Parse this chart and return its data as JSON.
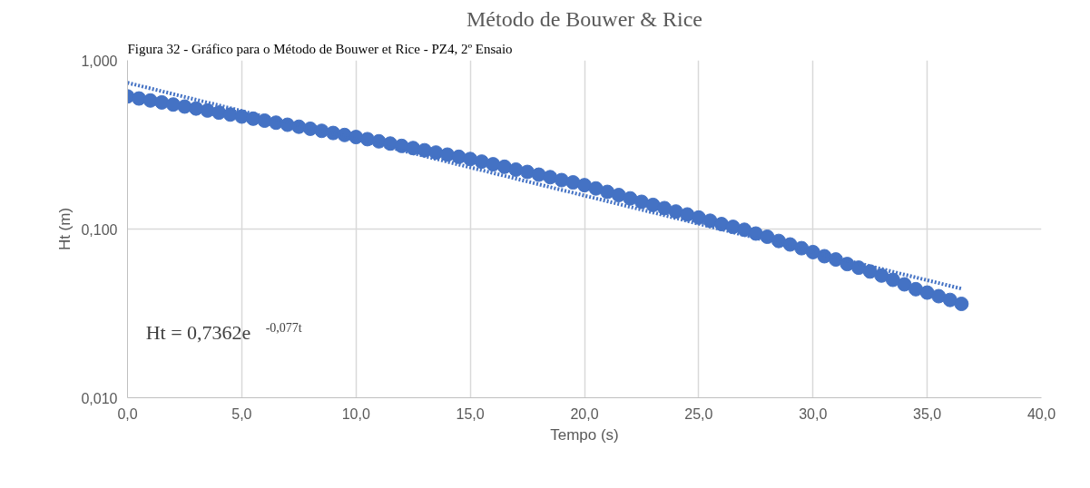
{
  "chart_data": {
    "type": "scatter",
    "title": "Método de Bouwer & Rice",
    "xlabel": "Tempo (s)",
    "ylabel": "Ht (m)",
    "annotations": [
      "Figura 32 - Gráfico para o Método de Bouwer et Rice - PZ4, 2º Ensaio",
      "Ht = 0,7362e$^{-0,077t}$"
    ],
    "x": [
      0,
      0.5,
      1,
      1.5,
      2,
      2.5,
      3,
      3.5,
      4,
      4.5,
      5,
      5.5,
      6,
      6.5,
      7,
      7.5,
      8,
      8.5,
      9,
      9.5,
      10,
      10.5,
      11,
      11.5,
      12,
      12.5,
      13,
      13.5,
      14,
      14.5,
      15,
      15.5,
      16,
      16.5,
      17,
      17.5,
      18,
      18.5,
      19,
      19.5,
      20,
      20.5,
      21,
      21.5,
      22,
      22.5,
      23,
      23.5,
      24,
      24.5,
      25,
      25.5,
      26,
      26.5,
      27,
      27.5,
      28,
      28.5,
      29,
      29.5,
      30,
      30.5,
      31,
      31.5,
      32,
      32.5,
      33,
      33.5,
      34,
      34.5,
      35,
      35.5,
      36,
      36.5
    ],
    "series": [
      {
        "color": "#4472c4",
        "values": [
          0.611,
          0.594,
          0.578,
          0.563,
          0.547,
          0.532,
          0.518,
          0.504,
          0.49,
          0.477,
          0.464,
          0.451,
          0.439,
          0.427,
          0.415,
          0.404,
          0.393,
          0.382,
          0.371,
          0.361,
          0.351,
          0.341,
          0.331,
          0.321,
          0.311,
          0.302,
          0.293,
          0.284,
          0.276,
          0.268,
          0.26,
          0.251,
          0.242,
          0.234,
          0.225,
          0.218,
          0.21,
          0.203,
          0.195,
          0.189,
          0.182,
          0.174,
          0.166,
          0.159,
          0.152,
          0.145,
          0.139,
          0.133,
          0.127,
          0.122,
          0.117,
          0.112,
          0.107,
          0.103,
          0.099,
          0.094,
          0.09,
          0.085,
          0.081,
          0.077,
          0.073,
          0.069,
          0.066,
          0.062,
          0.059,
          0.056,
          0.053,
          0.05,
          0.047,
          0.044,
          0.042,
          0.04,
          0.038,
          0.036
        ]
      },
      {
        "type": "line",
        "color": "#4472c4",
        "x": [
          0,
          36.5
        ],
        "values": [
          0.736,
          0.0443
        ],
        "line_style": "dotted",
        "marker": "none"
      }
    ],
    "xlim": [
      0,
      40
    ],
    "xticks": [
      {
        "value": 0,
        "label": "0,0"
      },
      {
        "value": 5,
        "label": "5,0"
      },
      {
        "value": 10,
        "label": "10,0"
      },
      {
        "value": 15,
        "label": "15,0"
      },
      {
        "value": 20,
        "label": "20,0"
      },
      {
        "value": 25,
        "label": "25,0"
      },
      {
        "value": 30,
        "label": "30,0"
      },
      {
        "value": 35,
        "label": "35,0"
      },
      {
        "value": 40,
        "label": "40,0"
      }
    ],
    "ylim": [
      0.01,
      1
    ],
    "yticks": [
      {
        "value": 0.01,
        "label": "0,010"
      },
      {
        "value": 0.1,
        "label": "0,100"
      },
      {
        "value": 1,
        "label": "1,000"
      }
    ],
    "log": true,
    "grid": true,
    "marker": "circle"
  }
}
